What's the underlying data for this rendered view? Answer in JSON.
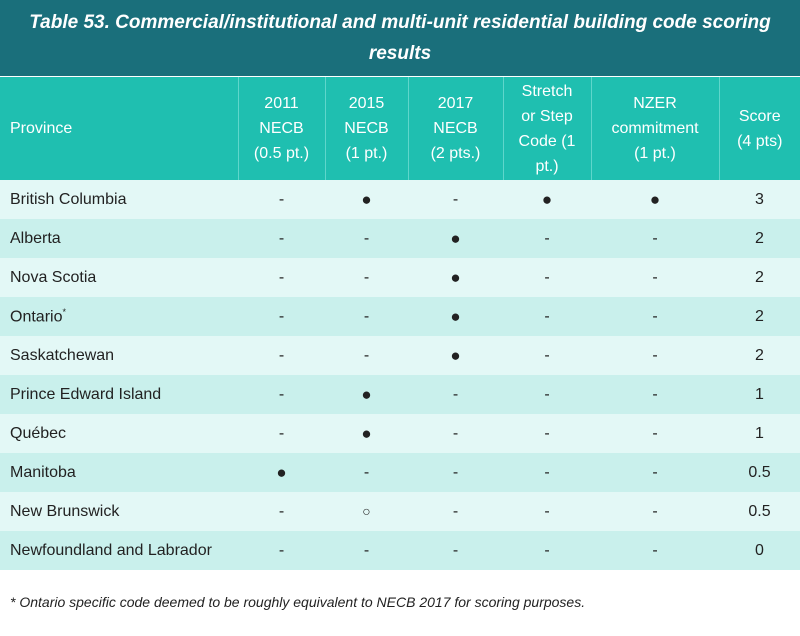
{
  "title": "Table 53. Commercial/institutional and multi-unit residential building code scoring results",
  "columns": [
    {
      "line1": "Province"
    },
    {
      "line1": "2011",
      "line2": "NECB",
      "line3": "(0.5 pt.)"
    },
    {
      "line1": "2015",
      "line2": "NECB",
      "line3": "(1 pt.)"
    },
    {
      "line1": "2017",
      "line2": "NECB",
      "line3": "(2 pts.)"
    },
    {
      "line1": "Stretch",
      "line2": "or Step",
      "line3": "Code (1",
      "line4": "pt.)"
    },
    {
      "line1": "NZER",
      "line2": "commitment",
      "line3": "(1 pt.)"
    },
    {
      "line1": "Score",
      "line2": "(4 pts)"
    }
  ],
  "rows": [
    {
      "province": "British Columbia",
      "footnote_mark": "",
      "necb2011": "-",
      "necb2015": "●",
      "necb2017": "-",
      "stretch": "●",
      "nzer": "●",
      "score": "3"
    },
    {
      "province": "Alberta",
      "footnote_mark": "",
      "necb2011": "-",
      "necb2015": "-",
      "necb2017": "●",
      "stretch": "-",
      "nzer": "-",
      "score": "2"
    },
    {
      "province": "Nova Scotia",
      "footnote_mark": "",
      "necb2011": "-",
      "necb2015": "-",
      "necb2017": "●",
      "stretch": "-",
      "nzer": "-",
      "score": "2"
    },
    {
      "province": "Ontario",
      "footnote_mark": "*",
      "necb2011": "-",
      "necb2015": "-",
      "necb2017": "●",
      "stretch": "-",
      "nzer": "-",
      "score": "2"
    },
    {
      "province": "Saskatchewan",
      "footnote_mark": "",
      "necb2011": "-",
      "necb2015": "-",
      "necb2017": "●",
      "stretch": "-",
      "nzer": "-",
      "score": "2"
    },
    {
      "province": "Prince Edward Island",
      "footnote_mark": "",
      "necb2011": "-",
      "necb2015": "●",
      "necb2017": "-",
      "stretch": "-",
      "nzer": "-",
      "score": "1"
    },
    {
      "province": "Québec",
      "footnote_mark": "",
      "necb2011": "-",
      "necb2015": "●",
      "necb2017": "-",
      "stretch": "-",
      "nzer": "-",
      "score": "1"
    },
    {
      "province": "Manitoba",
      "footnote_mark": "",
      "necb2011": "●",
      "necb2015": "-",
      "necb2017": "-",
      "stretch": "-",
      "nzer": "-",
      "score": "0.5"
    },
    {
      "province": "New Brunswick",
      "footnote_mark": "",
      "necb2011": "-",
      "necb2015": "○",
      "necb2017": "-",
      "stretch": "-",
      "nzer": "-",
      "score": "0.5"
    },
    {
      "province": "Newfoundland and Labrador",
      "footnote_mark": "",
      "necb2011": "-",
      "necb2015": "-",
      "necb2017": "-",
      "stretch": "-",
      "nzer": "-",
      "score": "0"
    }
  ],
  "footnote": "* Ontario specific code deemed to be roughly equivalent to NECB 2017 for scoring purposes.",
  "colors": {
    "title_bg": "#1a6f7b",
    "header_bg": "#1fbfb0",
    "row_light": "#e3f8f6",
    "row_dark": "#c9f0ec"
  }
}
